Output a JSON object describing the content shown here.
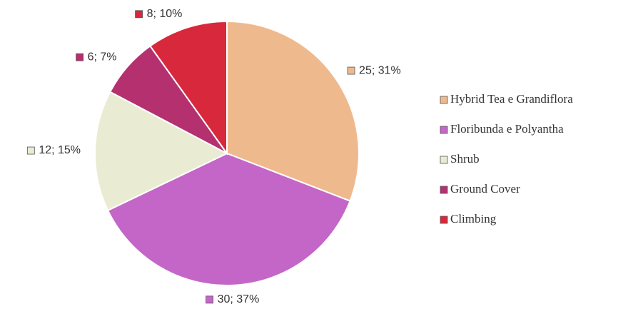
{
  "chart_data": {
    "type": "pie",
    "categories": [
      "Hybrid Tea e Grandiflora",
      "Floribunda e Polyantha",
      "Shrub",
      "Ground Cover",
      "Climbing"
    ],
    "values": [
      25,
      30,
      12,
      6,
      8
    ],
    "value_labels": [
      "25; 31%",
      "30; 37%",
      "12; 15%",
      "6; 7%",
      "8; 10%"
    ],
    "colors": [
      "#efb98e",
      "#c466c8",
      "#e9ecd2",
      "#b4306e",
      "#d8283c"
    ],
    "legend": "right"
  }
}
